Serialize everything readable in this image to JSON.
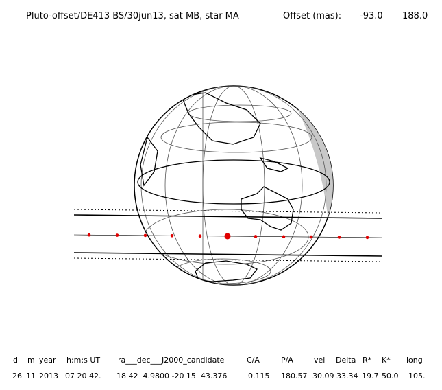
{
  "header": {
    "title": "Pluto-offset/DE413 BS/30jun13, sat MB, star MA",
    "offset_label": "Offset (mas):",
    "offset_values": [
      "-93.0",
      "188.0"
    ]
  },
  "table": {
    "headers": [
      "d",
      "m",
      "year",
      "h:m:s UT",
      "ra___dec___J2000_candidate",
      "C/A",
      "P/A",
      "vel",
      "Delta",
      "R*",
      "K*",
      "long"
    ],
    "values": [
      "26",
      "11",
      "2013",
      "07 20 42.",
      "18 42  4.9800 -20 15  43.376",
      "0.115",
      "180.57",
      "30.09",
      "33.34",
      "19.7",
      "50.0",
      "105."
    ]
  }
}
